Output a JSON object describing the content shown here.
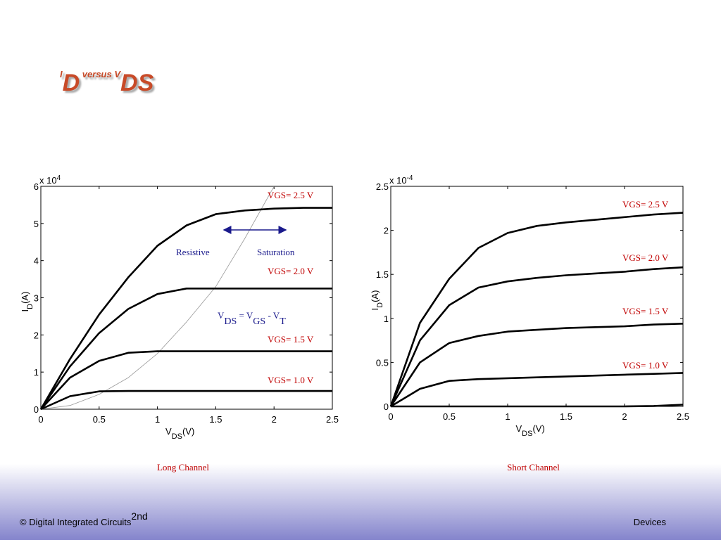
{
  "slide": {
    "title": [
      "I",
      "D",
      " versus V",
      "DS"
    ],
    "footer_left": [
      "© Digital Integrated Circuits",
      "2nd"
    ],
    "footer_right": "Devices"
  },
  "chart_data": [
    {
      "type": "line",
      "caption": "Long Channel",
      "xlabel": [
        "V",
        "DS",
        "(V)"
      ],
      "ylabel": [
        "I",
        "D",
        "(A)"
      ],
      "y_multiplier": [
        "x 10",
        "4"
      ],
      "xlim": [
        0,
        2.5
      ],
      "xticks": [
        0,
        0.5,
        1,
        1.5,
        2,
        2.5
      ],
      "ylim": [
        0,
        6
      ],
      "yticks": [
        0,
        1,
        2,
        3,
        4,
        5,
        6
      ],
      "x": [
        0,
        0.25,
        0.5,
        0.75,
        1,
        1.25,
        1.5,
        1.75,
        2,
        2.25,
        2.5
      ],
      "series": [
        {
          "name": "VGS= 2.5 V",
          "color": "#000000",
          "values": [
            0,
            1.35,
            2.55,
            3.55,
            4.4,
            4.95,
            5.25,
            5.35,
            5.4,
            5.42,
            5.42
          ]
        },
        {
          "name": "VGS= 2.0 V",
          "color": "#000000",
          "values": [
            0,
            1.15,
            2.05,
            2.7,
            3.1,
            3.25,
            3.25,
            3.25,
            3.25,
            3.25,
            3.25
          ]
        },
        {
          "name": "VGS= 1.5 V",
          "color": "#000000",
          "values": [
            0,
            0.85,
            1.3,
            1.52,
            1.56,
            1.56,
            1.56,
            1.56,
            1.56,
            1.56,
            1.56
          ]
        },
        {
          "name": "VGS= 1.0 V",
          "color": "#000000",
          "values": [
            0,
            0.35,
            0.48,
            0.49,
            0.49,
            0.49,
            0.49,
            0.49,
            0.49,
            0.49,
            0.49
          ]
        }
      ],
      "label_color": "#c00000",
      "region_labels": [
        "Resistive",
        "Saturation"
      ],
      "boundary": {
        "label": [
          "V",
          "DS",
          " = V",
          "GS",
          " - V",
          "T"
        ],
        "color": "#999999",
        "x": [
          0,
          0.25,
          0.5,
          0.75,
          1,
          1.25,
          1.5,
          1.75,
          2
        ],
        "values": [
          0,
          0.1,
          0.4,
          0.85,
          1.5,
          2.35,
          3.3,
          4.6,
          6
        ]
      }
    },
    {
      "type": "line",
      "caption": "Short Channel",
      "xlabel": [
        "V",
        "DS",
        "(V)"
      ],
      "ylabel": [
        "I",
        "D",
        "(A)"
      ],
      "y_multiplier": [
        "x 10",
        "-4"
      ],
      "xlim": [
        0,
        2.5
      ],
      "xticks": [
        0,
        0.5,
        1,
        1.5,
        2,
        2.5
      ],
      "ylim": [
        0,
        2.5
      ],
      "yticks": [
        0,
        0.5,
        1,
        1.5,
        2,
        2.5
      ],
      "x": [
        0,
        0.25,
        0.5,
        0.75,
        1,
        1.25,
        1.5,
        1.75,
        2,
        2.25,
        2.5
      ],
      "series": [
        {
          "name": "VGS= 2.5 V",
          "color": "#000000",
          "values": [
            0,
            0.95,
            1.45,
            1.8,
            1.97,
            2.05,
            2.09,
            2.12,
            2.15,
            2.18,
            2.2
          ]
        },
        {
          "name": "VGS= 2.0 V",
          "color": "#000000",
          "values": [
            0,
            0.75,
            1.15,
            1.35,
            1.42,
            1.46,
            1.49,
            1.51,
            1.53,
            1.56,
            1.58
          ]
        },
        {
          "name": "VGS= 1.5 V",
          "color": "#000000",
          "values": [
            0,
            0.5,
            0.72,
            0.8,
            0.85,
            0.87,
            0.89,
            0.9,
            0.91,
            0.93,
            0.94
          ]
        },
        {
          "name": "VGS= 1.0 V",
          "color": "#000000",
          "values": [
            0,
            0.2,
            0.29,
            0.31,
            0.32,
            0.33,
            0.34,
            0.35,
            0.36,
            0.37,
            0.38
          ]
        },
        {
          "color": "#000000",
          "values": [
            0,
            0,
            0,
            0,
            0,
            0,
            0,
            0,
            0,
            0.005,
            0.02
          ]
        }
      ],
      "label_color": "#c00000"
    }
  ]
}
